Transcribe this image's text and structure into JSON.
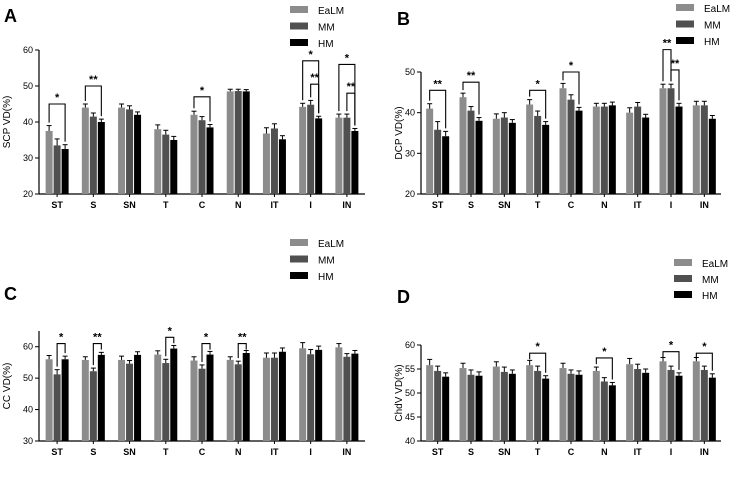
{
  "colors": {
    "EaLM": "#8c8c8c",
    "MM": "#505050",
    "HM": "#000000",
    "axis": "#000000"
  },
  "chart_data": [
    {
      "type": "bar",
      "panel_label": "A",
      "ylabel": "SCP VD(%)",
      "ylim": [
        20,
        60
      ],
      "yticks": [
        20,
        30,
        40,
        50,
        60
      ],
      "categories": [
        "ST",
        "S",
        "SN",
        "T",
        "C",
        "N",
        "IT",
        "I",
        "IN"
      ],
      "series": [
        {
          "name": "EaLM",
          "values": [
            37.5,
            44.0,
            44.0,
            38.0,
            42.0,
            48.5,
            36.8,
            44.2,
            41.2
          ],
          "errors": [
            1.5,
            1.0,
            1.0,
            1.2,
            1.0,
            0.6,
            1.6,
            1.0,
            1.0
          ]
        },
        {
          "name": "MM",
          "values": [
            33.5,
            41.5,
            43.5,
            36.5,
            40.5,
            48.6,
            38.2,
            44.8,
            41.2
          ],
          "errors": [
            1.8,
            1.0,
            1.0,
            1.2,
            1.0,
            0.5,
            1.3,
            1.2,
            1.0
          ]
        },
        {
          "name": "HM",
          "values": [
            32.5,
            40.0,
            42.0,
            35.0,
            38.5,
            48.5,
            35.2,
            41.0,
            37.5
          ],
          "errors": [
            1.2,
            0.8,
            0.8,
            1.0,
            0.8,
            0.5,
            1.0,
            0.6,
            0.7
          ]
        }
      ],
      "annotations": [
        {
          "cat": 0,
          "from": 0,
          "to": 2,
          "level": 45,
          "label": "*"
        },
        {
          "cat": 1,
          "from": 0,
          "to": 2,
          "level": 50,
          "label": "**"
        },
        {
          "cat": 4,
          "from": 0,
          "to": 2,
          "level": 47,
          "label": "*"
        },
        {
          "cat": 7,
          "from": 0,
          "to": 2,
          "level": 57,
          "label": "*"
        },
        {
          "cat": 7,
          "from": 1,
          "to": 2,
          "level": 50.5,
          "label": "**"
        },
        {
          "cat": 8,
          "from": 0,
          "to": 2,
          "level": 56,
          "label": "*"
        },
        {
          "cat": 8,
          "from": 1,
          "to": 2,
          "level": 48,
          "label": "**"
        }
      ]
    },
    {
      "type": "bar",
      "panel_label": "B",
      "ylabel": "DCP VD(%)",
      "ylim": [
        20,
        50
      ],
      "yticks": [
        20,
        30,
        40,
        50
      ],
      "categories": [
        "ST",
        "S",
        "SN",
        "T",
        "C",
        "N",
        "IT",
        "I",
        "IN"
      ],
      "series": [
        {
          "name": "EaLM",
          "values": [
            41.0,
            43.8,
            38.5,
            42.0,
            46.0,
            41.5,
            40.0,
            46.0,
            41.8
          ],
          "errors": [
            1.2,
            1.0,
            1.2,
            1.2,
            1.2,
            0.8,
            1.2,
            1.0,
            1.0
          ]
        },
        {
          "name": "MM",
          "values": [
            35.8,
            40.5,
            38.8,
            39.2,
            43.2,
            41.5,
            41.5,
            46.0,
            41.8
          ],
          "errors": [
            2.0,
            1.0,
            1.2,
            1.2,
            1.2,
            0.8,
            1.0,
            1.0,
            1.0
          ]
        },
        {
          "name": "HM",
          "values": [
            34.2,
            38.0,
            37.5,
            37.0,
            40.5,
            41.8,
            38.8,
            41.5,
            38.5
          ],
          "errors": [
            1.2,
            0.8,
            0.8,
            0.8,
            0.8,
            0.8,
            0.8,
            0.8,
            0.8
          ]
        }
      ],
      "annotations": [
        {
          "cat": 0,
          "from": 0,
          "to": 2,
          "level": 45.5,
          "label": "**"
        },
        {
          "cat": 1,
          "from": 0,
          "to": 2,
          "level": 47.5,
          "label": "**"
        },
        {
          "cat": 3,
          "from": 0,
          "to": 2,
          "level": 45.5,
          "label": "*"
        },
        {
          "cat": 4,
          "from": 0,
          "to": 2,
          "level": 50,
          "label": "*"
        },
        {
          "cat": 7,
          "from": 0,
          "to": 1,
          "level": 55.5,
          "label": "**"
        },
        {
          "cat": 7,
          "from": 1,
          "to": 2,
          "level": 50.5,
          "label": "**"
        }
      ]
    },
    {
      "type": "bar",
      "panel_label": "C",
      "ylabel": "CC VD(%)",
      "ylim": [
        30,
        65
      ],
      "yticks": [
        30,
        40,
        50,
        60
      ],
      "categories": [
        "ST",
        "S",
        "SN",
        "T",
        "C",
        "N",
        "IT",
        "I",
        "IN"
      ],
      "series": [
        {
          "name": "EaLM",
          "values": [
            56.0,
            55.8,
            55.8,
            57.5,
            55.6,
            55.8,
            56.5,
            59.5,
            59.8
          ],
          "errors": [
            1.2,
            1.0,
            1.2,
            1.2,
            1.2,
            1.0,
            1.5,
            1.8,
            1.2
          ]
        },
        {
          "name": "MM",
          "values": [
            51.2,
            52.2,
            54.6,
            54.8,
            53.0,
            54.4,
            56.5,
            57.6,
            56.8
          ],
          "errors": [
            1.5,
            1.0,
            1.0,
            1.2,
            1.2,
            1.0,
            1.5,
            1.5,
            1.0
          ]
        },
        {
          "name": "HM",
          "values": [
            56.0,
            57.4,
            57.4,
            59.4,
            57.5,
            58.0,
            58.4,
            59.0,
            57.8
          ],
          "errors": [
            1.0,
            0.8,
            1.0,
            1.0,
            1.0,
            0.8,
            1.2,
            1.2,
            1.0
          ]
        }
      ],
      "annotations": [
        {
          "cat": 0,
          "from": 1,
          "to": 2,
          "level": 61,
          "label": "*"
        },
        {
          "cat": 1,
          "from": 1,
          "to": 2,
          "level": 61,
          "label": "**"
        },
        {
          "cat": 3,
          "from": 1,
          "to": 2,
          "level": 63,
          "label": "*"
        },
        {
          "cat": 4,
          "from": 1,
          "to": 2,
          "level": 61,
          "label": "*"
        },
        {
          "cat": 5,
          "from": 1,
          "to": 2,
          "level": 61,
          "label": "**"
        }
      ]
    },
    {
      "type": "bar",
      "panel_label": "D",
      "ylabel": "ChdV VD(%)",
      "ylim": [
        40,
        60
      ],
      "yticks": [
        40,
        45,
        50,
        55,
        60
      ],
      "categories": [
        "ST",
        "S",
        "SN",
        "T",
        "C",
        "N",
        "IT",
        "I",
        "IN"
      ],
      "series": [
        {
          "name": "EaLM",
          "values": [
            55.8,
            55.2,
            55.5,
            55.8,
            55.2,
            54.6,
            56.0,
            56.6,
            56.6
          ],
          "errors": [
            1.2,
            1.0,
            1.0,
            1.0,
            1.0,
            0.8,
            1.2,
            0.8,
            0.8
          ]
        },
        {
          "name": "MM",
          "values": [
            54.6,
            53.8,
            54.4,
            54.6,
            54.0,
            52.4,
            55.0,
            54.8,
            54.8
          ],
          "errors": [
            1.0,
            1.0,
            1.0,
            1.0,
            0.8,
            0.8,
            1.0,
            0.8,
            0.8
          ]
        },
        {
          "name": "HM",
          "values": [
            53.4,
            53.6,
            54.0,
            53.0,
            53.8,
            51.6,
            54.2,
            53.6,
            53.2
          ],
          "errors": [
            0.8,
            0.8,
            0.8,
            0.6,
            0.8,
            0.6,
            0.8,
            0.6,
            0.8
          ]
        }
      ],
      "annotations": [
        {
          "cat": 3,
          "from": 0,
          "to": 2,
          "level": 58.3,
          "label": "*"
        },
        {
          "cat": 5,
          "from": 0,
          "to": 2,
          "level": 57.3,
          "label": "*"
        },
        {
          "cat": 7,
          "from": 0,
          "to": 2,
          "level": 58.6,
          "label": "*"
        },
        {
          "cat": 8,
          "from": 0,
          "to": 2,
          "level": 58.3,
          "label": "*"
        }
      ]
    }
  ]
}
